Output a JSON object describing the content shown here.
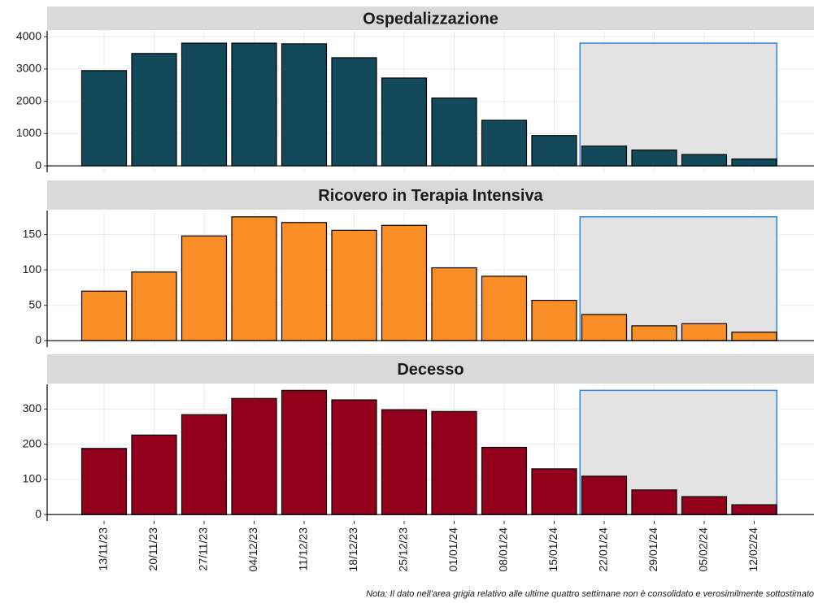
{
  "chart_data": [
    {
      "type": "bar",
      "title": "Ospedalizzazione",
      "color": "#134a5b",
      "values": [
        2950,
        3480,
        3800,
        3800,
        3780,
        3350,
        2720,
        2100,
        1410,
        940,
        610,
        490,
        350,
        210
      ],
      "ylim": [
        -200,
        4180
      ],
      "yticks": [
        0,
        1000,
        2000,
        3000,
        4000
      ],
      "grid": true
    },
    {
      "type": "bar",
      "title": "Ricovero in Terapia Intensiva",
      "color": "#f98e27",
      "values": [
        70,
        97,
        148,
        175,
        167,
        156,
        163,
        103,
        91,
        57,
        37,
        21,
        24,
        12
      ],
      "ylim": [
        -9,
        184
      ],
      "yticks": [
        0,
        50,
        100,
        150
      ],
      "grid": true
    },
    {
      "type": "bar",
      "title": "Decesso",
      "color": "#93001c",
      "categories": [
        "13/11/23",
        "20/11/23",
        "27/11/23",
        "04/12/23",
        "11/12/23",
        "18/12/23",
        "25/12/23",
        "01/01/24",
        "08/01/24",
        "15/01/24",
        "22/01/24",
        "29/01/24",
        "05/02/24",
        "12/02/24"
      ],
      "values": [
        188,
        226,
        284,
        330,
        353,
        326,
        298,
        293,
        191,
        130,
        109,
        70,
        51,
        28
      ],
      "ylim": [
        -18,
        370
      ],
      "yticks": [
        0,
        100,
        200,
        300
      ],
      "grid": true
    }
  ],
  "note": "Nota: Il dato nell’area grigia relativo alle ultime quattro settimane non è consolidato e verosimilmente sottostimato"
}
